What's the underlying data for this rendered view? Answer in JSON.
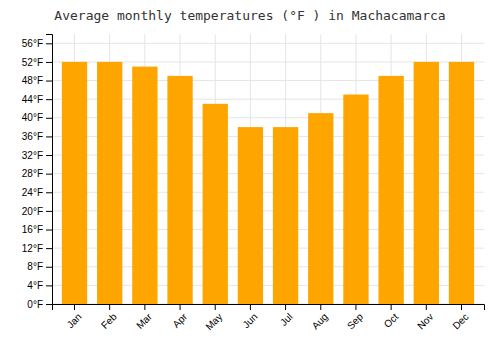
{
  "chart_data": {
    "type": "bar",
    "title": "Average monthly temperatures (°F ) in Machacamarca",
    "categories": [
      "Jan",
      "Feb",
      "Mar",
      "Apr",
      "May",
      "Jun",
      "Jul",
      "Aug",
      "Sep",
      "Oct",
      "Nov",
      "Dec"
    ],
    "values": [
      52,
      52,
      51,
      49,
      43,
      38,
      38,
      41,
      45,
      49,
      52,
      52
    ],
    "color": "#FFA500",
    "ylim": [
      0,
      58
    ],
    "yticks": [
      {
        "value": 0,
        "label": "0°F"
      },
      {
        "value": 4,
        "label": "4°F"
      },
      {
        "value": 8,
        "label": "8°F"
      },
      {
        "value": 12,
        "label": "12°F"
      },
      {
        "value": 16,
        "label": "16°F"
      },
      {
        "value": 20,
        "label": "20°F"
      },
      {
        "value": 24,
        "label": "24°F"
      },
      {
        "value": 28,
        "label": "28°F"
      },
      {
        "value": 32,
        "label": "32°F"
      },
      {
        "value": 36,
        "label": "36°F"
      },
      {
        "value": 40,
        "label": "40°F"
      },
      {
        "value": 44,
        "label": "44°F"
      },
      {
        "value": 48,
        "label": "48°F"
      },
      {
        "value": 52,
        "label": "52°F"
      },
      {
        "value": 56,
        "label": "56°F"
      }
    ],
    "grid": true
  }
}
